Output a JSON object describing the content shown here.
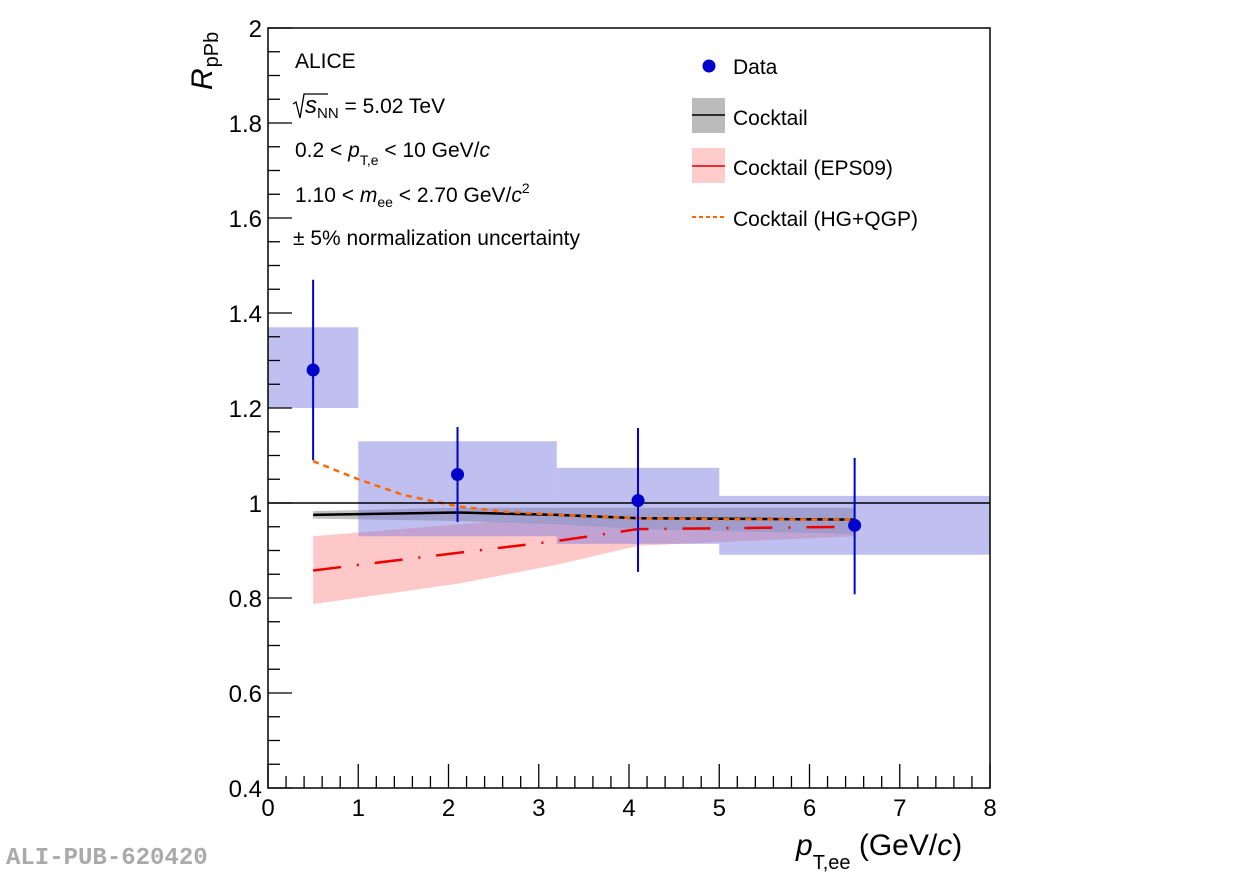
{
  "chart_data": {
    "type": "scatter",
    "title": "",
    "xlabel": "p_T,ee (GeV/c)",
    "xlabel_parts": {
      "main": "p",
      "sub": "T,ee",
      "unit": " (GeV/",
      "unit_italic": "c",
      "close": ")"
    },
    "ylabel": "R_pPb",
    "ylabel_parts": {
      "main": "R",
      "sub": "pPb"
    },
    "xlim": [
      0,
      8
    ],
    "ylim": [
      0.4,
      2.0
    ],
    "x_ticks": [
      0,
      1,
      2,
      3,
      4,
      5,
      6,
      7,
      8
    ],
    "x_tick_labels": [
      "0",
      "1",
      "2",
      "3",
      "4",
      "5",
      "6",
      "7",
      "8"
    ],
    "y_ticks": [
      0.4,
      0.6,
      0.8,
      1.0,
      1.2,
      1.4,
      1.6,
      1.8,
      2.0
    ],
    "y_tick_labels": [
      "0.4",
      "0.6",
      "0.8",
      "1",
      "1.2",
      "1.4",
      "1.6",
      "1.8",
      "2"
    ],
    "grid": false,
    "reference_line": 1.0,
    "annotations": {
      "experiment": "ALICE",
      "energy": {
        "prefix": "s",
        "sub": "NN",
        "value": " = 5.02 TeV"
      },
      "pt_cut": {
        "pre": "0.2 < ",
        "var": "p",
        "sub": "T,e",
        "post": " < 10 GeV/",
        "unit_italic": "c"
      },
      "mass_cut": {
        "pre": "1.10 < ",
        "var": "m",
        "sub": "ee",
        "post": " < 2.70 GeV/",
        "unit_italic": "c",
        "sup": "2"
      },
      "normalization": "± 5% normalization uncertainty"
    },
    "legend": {
      "placement": "top-right",
      "entries": [
        {
          "label": "Data",
          "marker": "circle",
          "color": "#0000cc"
        },
        {
          "label": "Cocktail",
          "marker": "line-band",
          "color": "#000000",
          "band_color": "#bbbbbb"
        },
        {
          "label": "Cocktail (EPS09)",
          "marker": "line-band",
          "color": "#dd0000",
          "band_color": "#ffcccc"
        },
        {
          "label": "Cocktail (HG+QGP)",
          "marker": "dashed-line",
          "color": "#ff6600"
        }
      ]
    },
    "series": [
      {
        "name": "Data",
        "color": "#0000cc",
        "sys_color": "#bfbff0",
        "points": [
          {
            "x": 0.5,
            "y": 1.28,
            "stat_low": 1.09,
            "stat_high": 1.47,
            "sys_low": 1.2,
            "sys_high": 1.37,
            "bin_low": 0.0,
            "bin_high": 1.0
          },
          {
            "x": 2.1,
            "y": 1.06,
            "stat_low": 0.96,
            "stat_high": 1.16,
            "sys_low": 0.93,
            "sys_high": 1.13,
            "bin_low": 1.0,
            "bin_high": 3.2
          },
          {
            "x": 4.1,
            "y": 1.005,
            "stat_low": 0.855,
            "stat_high": 1.158,
            "sys_low": 0.914,
            "sys_high": 1.074,
            "bin_low": 3.2,
            "bin_high": 5.0
          },
          {
            "x": 6.5,
            "y": 0.953,
            "stat_low": 0.808,
            "stat_high": 1.095,
            "sys_low": 0.891,
            "sys_high": 1.015,
            "bin_low": 5.0,
            "bin_high": 8.0
          }
        ]
      },
      {
        "name": "Cocktail",
        "color": "#000000",
        "band_color": "#bbbbbb",
        "x": [
          0.5,
          2.1,
          3.2,
          4.1,
          6.5
        ],
        "y": [
          0.975,
          0.98,
          0.975,
          0.968,
          0.965
        ],
        "band_low": [
          0.967,
          0.962,
          0.955,
          0.945,
          0.935
        ],
        "band_high": [
          0.983,
          0.99,
          0.99,
          0.99,
          0.99
        ]
      },
      {
        "name": "Cocktail (EPS09)",
        "color": "#ee0000",
        "band_color": "#ffb0b0",
        "x": [
          0.5,
          2.1,
          3.2,
          4.1,
          6.5
        ],
        "y": [
          0.858,
          0.895,
          0.92,
          0.945,
          0.95
        ],
        "band_low": [
          0.787,
          0.83,
          0.87,
          0.91,
          0.93
        ],
        "band_high": [
          0.93,
          0.955,
          0.97,
          0.98,
          0.975
        ]
      },
      {
        "name": "Cocktail (HG+QGP)",
        "color": "#ff6600",
        "x": [
          0.5,
          1.0,
          1.5,
          2.1,
          2.6,
          3.2,
          4.1,
          5.0,
          6.5
        ],
        "y": [
          1.088,
          1.05,
          1.017,
          0.993,
          0.982,
          0.975,
          0.968,
          0.966,
          0.965
        ]
      }
    ]
  },
  "watermark": "ALI-PUB-620420"
}
